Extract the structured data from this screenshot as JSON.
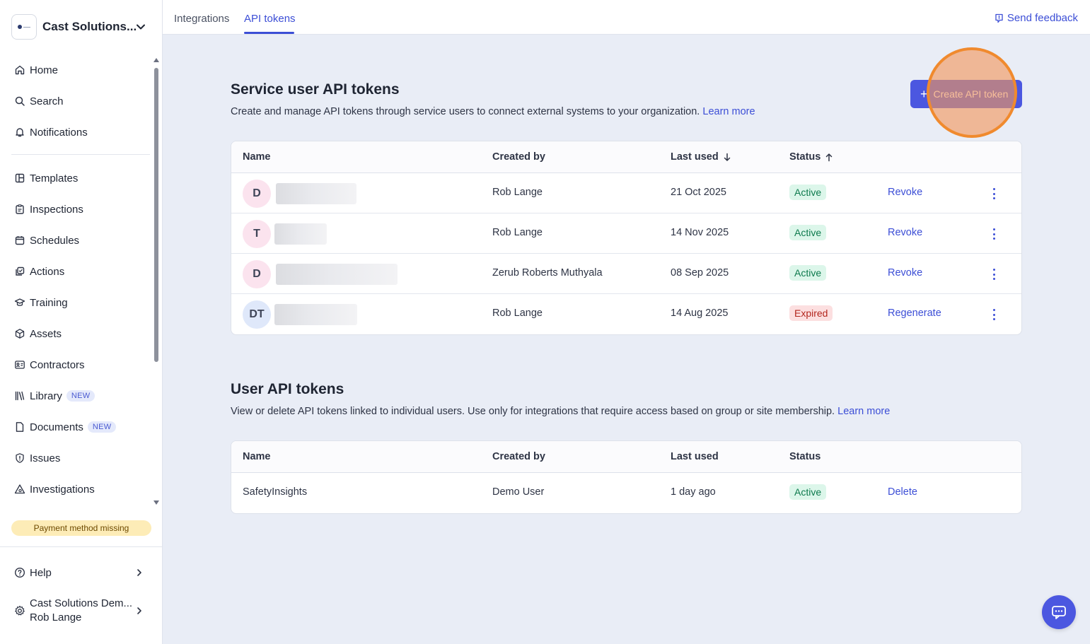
{
  "org": {
    "name": "Cast Solutions..."
  },
  "sidebar": {
    "items": [
      {
        "label": "Home",
        "icon": "home-icon"
      },
      {
        "label": "Search",
        "icon": "search-icon"
      },
      {
        "label": "Notifications",
        "icon": "bell-icon"
      },
      {
        "label": "Templates",
        "icon": "templates-icon"
      },
      {
        "label": "Inspections",
        "icon": "clipboard-icon"
      },
      {
        "label": "Schedules",
        "icon": "calendar-icon"
      },
      {
        "label": "Actions",
        "icon": "actions-icon"
      },
      {
        "label": "Training",
        "icon": "graduation-cap-icon"
      },
      {
        "label": "Assets",
        "icon": "cube-icon"
      },
      {
        "label": "Contractors",
        "icon": "id-card-icon"
      },
      {
        "label": "Library",
        "icon": "library-icon",
        "badge": "NEW"
      },
      {
        "label": "Documents",
        "icon": "document-icon",
        "badge": "NEW"
      },
      {
        "label": "Issues",
        "icon": "shield-alert-icon"
      },
      {
        "label": "Investigations",
        "icon": "warning-triangle-icon"
      }
    ],
    "payment_warning": "Payment method missing",
    "help_label": "Help",
    "account": {
      "org": "Cast Solutions Dem...",
      "user": "Rob Lange"
    }
  },
  "topbar": {
    "tabs": [
      {
        "label": "Integrations"
      },
      {
        "label": "API tokens"
      }
    ],
    "active_tab": "API tokens",
    "feedback_label": "Send feedback"
  },
  "service_tokens": {
    "title": "Service user API tokens",
    "description": "Create and manage API tokens through service users to connect external systems to your organization.",
    "learn_more": "Learn more",
    "create_button": "Create API token",
    "columns": {
      "name": "Name",
      "created_by": "Created by",
      "last_used": "Last used",
      "status": "Status"
    },
    "rows": [
      {
        "initials": "D",
        "created_by": "Rob Lange",
        "last_used": "21 Oct 2025",
        "status": "Active",
        "action": "Revoke"
      },
      {
        "initials": "T",
        "created_by": "Rob Lange",
        "last_used": "14 Nov 2025",
        "status": "Active",
        "action": "Revoke"
      },
      {
        "initials": "D",
        "created_by": "Zerub Roberts Muthyala",
        "last_used": "08 Sep 2025",
        "status": "Active",
        "action": "Revoke"
      },
      {
        "initials": "DT",
        "created_by": "Rob Lange",
        "last_used": "14 Aug 2025",
        "status": "Expired",
        "action": "Regenerate"
      }
    ]
  },
  "user_tokens": {
    "title": "User API tokens",
    "description": "View or delete API tokens linked to individual users. Use only for integrations that require access based on group or site membership.",
    "learn_more": "Learn more",
    "columns": {
      "name": "Name",
      "created_by": "Created by",
      "last_used": "Last used",
      "status": "Status"
    },
    "rows": [
      {
        "name": "SafetyInsights",
        "created_by": "Demo User",
        "last_used": "1 day ago",
        "status": "Active",
        "action": "Delete"
      }
    ]
  },
  "colors": {
    "accent": "#4b57e0",
    "link": "#3c4ed6",
    "active_bg": "#dcf6ea",
    "expired_bg": "#fcdfe0",
    "highlight": "#f08a2e"
  }
}
